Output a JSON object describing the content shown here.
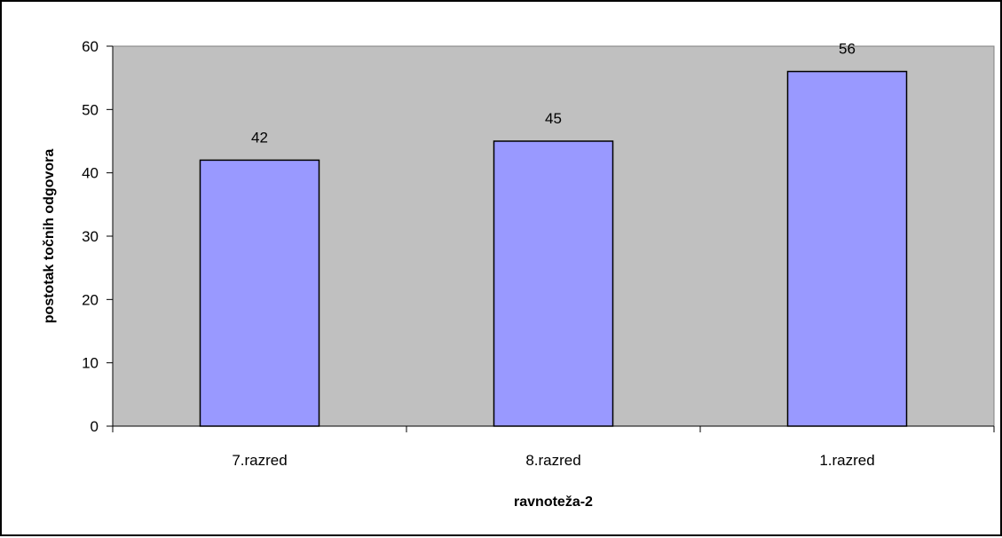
{
  "chart_data": {
    "type": "bar",
    "title": "",
    "xlabel": "ravnoteža-2",
    "ylabel": "postotak točnih odgovora",
    "categories": [
      "7.razred",
      "8.razred",
      "1.razred"
    ],
    "values": [
      42,
      45,
      56
    ],
    "data_labels": [
      "42",
      "45",
      "56"
    ],
    "ylim": [
      0,
      60
    ],
    "yticks": [
      0,
      10,
      20,
      30,
      40,
      50,
      60
    ],
    "ytick_labels": [
      "0",
      "10",
      "20",
      "30",
      "40",
      "50",
      "60"
    ],
    "grid": false,
    "legend": "none",
    "colors": {
      "bar_fill": "#9999ff",
      "bar_stroke": "#000000",
      "plot_background": "#c0c0c0",
      "axis": "#000000"
    }
  }
}
